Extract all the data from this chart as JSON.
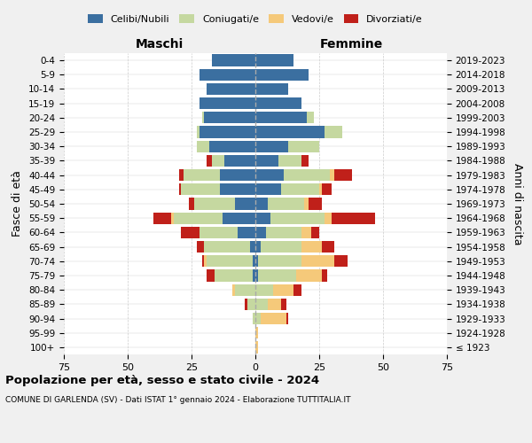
{
  "age_groups": [
    "100+",
    "95-99",
    "90-94",
    "85-89",
    "80-84",
    "75-79",
    "70-74",
    "65-69",
    "60-64",
    "55-59",
    "50-54",
    "45-49",
    "40-44",
    "35-39",
    "30-34",
    "25-29",
    "20-24",
    "15-19",
    "10-14",
    "5-9",
    "0-4"
  ],
  "birth_years": [
    "≤ 1923",
    "1924-1928",
    "1929-1933",
    "1934-1938",
    "1939-1943",
    "1944-1948",
    "1949-1953",
    "1954-1958",
    "1959-1963",
    "1964-1968",
    "1969-1973",
    "1974-1978",
    "1979-1983",
    "1984-1988",
    "1989-1993",
    "1994-1998",
    "1999-2003",
    "2004-2008",
    "2009-2013",
    "2014-2018",
    "2019-2023"
  ],
  "colors": {
    "celibi": "#3b6fa0",
    "coniugati": "#c5d8a0",
    "vedovi": "#f5c97a",
    "divorziati": "#c0201a"
  },
  "maschi": {
    "celibi": [
      0,
      0,
      0,
      0,
      0,
      1,
      1,
      2,
      7,
      13,
      8,
      14,
      14,
      12,
      18,
      22,
      20,
      22,
      19,
      22,
      17
    ],
    "coniugati": [
      0,
      0,
      1,
      3,
      8,
      15,
      18,
      18,
      15,
      19,
      16,
      15,
      14,
      5,
      5,
      1,
      1,
      0,
      0,
      0,
      0
    ],
    "vedovi": [
      0,
      0,
      0,
      0,
      1,
      0,
      1,
      0,
      0,
      1,
      0,
      0,
      0,
      0,
      0,
      0,
      0,
      0,
      0,
      0,
      0
    ],
    "divorziati": [
      0,
      0,
      0,
      1,
      0,
      3,
      1,
      3,
      7,
      7,
      2,
      1,
      2,
      2,
      0,
      0,
      0,
      0,
      0,
      0,
      0
    ]
  },
  "femmine": {
    "celibi": [
      0,
      0,
      0,
      0,
      0,
      1,
      1,
      2,
      4,
      6,
      5,
      10,
      11,
      9,
      13,
      27,
      20,
      18,
      13,
      21,
      15
    ],
    "coniugati": [
      0,
      0,
      2,
      5,
      7,
      15,
      17,
      16,
      14,
      21,
      14,
      15,
      18,
      9,
      12,
      7,
      3,
      0,
      0,
      0,
      0
    ],
    "vedovi": [
      1,
      1,
      10,
      5,
      8,
      10,
      13,
      8,
      4,
      3,
      2,
      1,
      2,
      0,
      0,
      0,
      0,
      0,
      0,
      0,
      0
    ],
    "divorziati": [
      0,
      0,
      1,
      2,
      3,
      2,
      5,
      5,
      3,
      17,
      5,
      4,
      7,
      3,
      0,
      0,
      0,
      0,
      0,
      0,
      0
    ]
  },
  "xlim": 75,
  "title": "Popolazione per età, sesso e stato civile - 2024",
  "subtitle": "COMUNE DI GARLENDA (SV) - Dati ISTAT 1° gennaio 2024 - Elaborazione TUTTITALIA.IT",
  "ylabel_left": "Fasce di età",
  "ylabel_right": "Anni di nascita",
  "xlabel_left": "Maschi",
  "xlabel_right": "Femmine",
  "background_color": "#f0f0f0",
  "plot_background": "#ffffff"
}
